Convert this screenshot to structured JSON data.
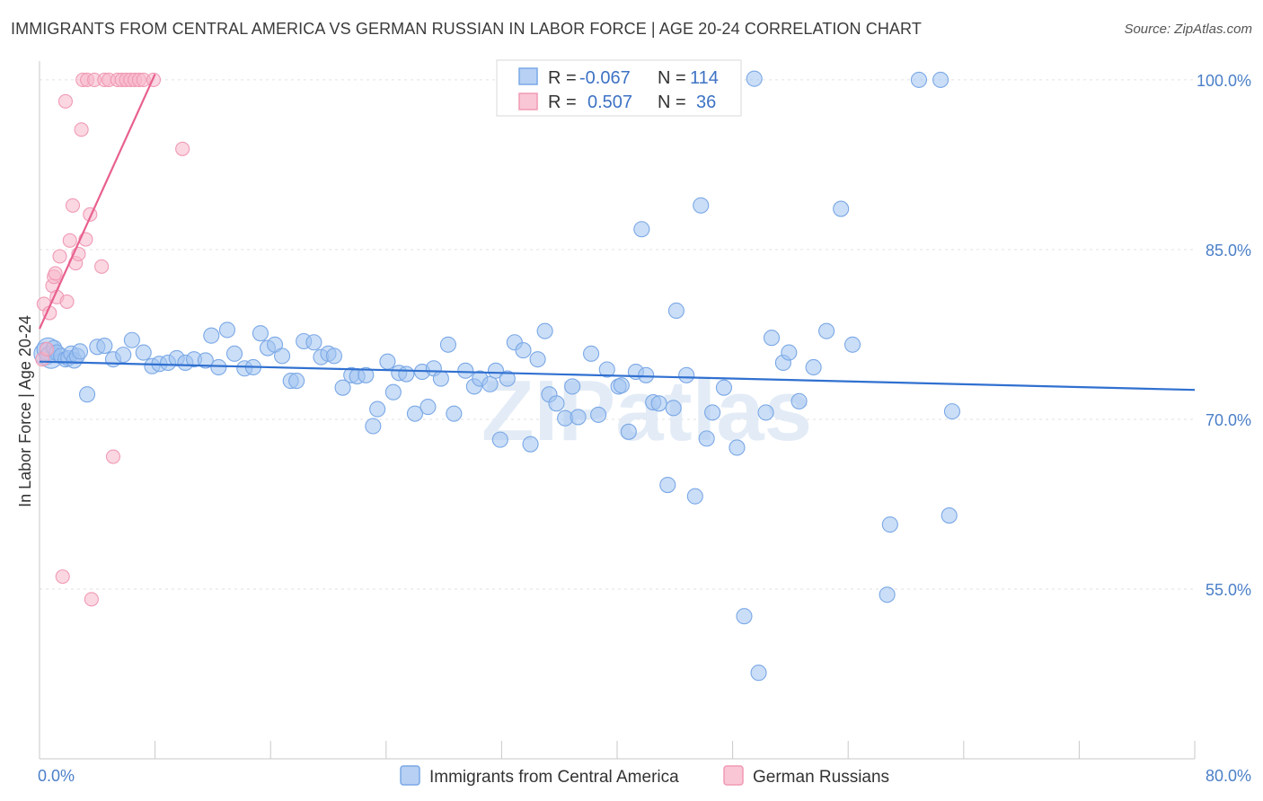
{
  "header": {
    "title": "IMMIGRANTS FROM CENTRAL AMERICA VS GERMAN RUSSIAN IN LABOR FORCE | AGE 20-24 CORRELATION CHART",
    "source": "Source: ZipAtlas.com"
  },
  "colors": {
    "blue": "#7aa8e6",
    "pink": "#f09ab4",
    "blue_line": "#3070d0",
    "pink_line": "#e8608e"
  },
  "chart_data": {
    "type": "scatter",
    "ylabel": "In Labor Force | Age 20-24",
    "xlim": [
      0,
      80
    ],
    "ylim": [
      40,
      101.5
    ],
    "x_tick_labels": [
      "0.0%",
      "80.0%"
    ],
    "y_ticks": [
      {
        "value": 100,
        "label": "100.0%"
      },
      {
        "value": 85,
        "label": "85.0%"
      },
      {
        "value": 70,
        "label": "70.0%"
      },
      {
        "value": 55,
        "label": "55.0%"
      }
    ],
    "grid": true,
    "stats_legend": [
      {
        "r_label": "R =",
        "r_value": "-0.067",
        "n_label": "N =",
        "n_value": "114"
      },
      {
        "r_label": "R =",
        "r_value": "0.507",
        "n_label": "N =",
        "n_value": "36"
      }
    ],
    "watermark": "ZIPatlas",
    "series": [
      {
        "name": "Immigrants from Central America",
        "color": "#7aa8e6",
        "trend": [
          [
            0,
            75.1
          ],
          [
            80,
            72.6
          ]
        ],
        "points": [
          [
            0.4,
            75.8
          ],
          [
            0.6,
            76.2
          ],
          [
            0.8,
            75.5
          ],
          [
            1.0,
            76.3
          ],
          [
            1.2,
            75.9
          ],
          [
            1.5,
            75.6
          ],
          [
            1.8,
            75.3
          ],
          [
            2.0,
            75.4
          ],
          [
            2.2,
            75.8
          ],
          [
            2.4,
            75.2
          ],
          [
            2.6,
            75.6
          ],
          [
            2.8,
            76.0
          ],
          [
            3.3,
            72.2
          ],
          [
            4.0,
            76.4
          ],
          [
            4.5,
            76.5
          ],
          [
            5.1,
            75.3
          ],
          [
            5.8,
            75.7
          ],
          [
            6.4,
            77.0
          ],
          [
            7.2,
            75.9
          ],
          [
            7.8,
            74.7
          ],
          [
            8.3,
            74.9
          ],
          [
            8.9,
            75.0
          ],
          [
            9.5,
            75.4
          ],
          [
            10.1,
            75.0
          ],
          [
            10.7,
            75.3
          ],
          [
            11.5,
            75.2
          ],
          [
            11.9,
            77.4
          ],
          [
            12.4,
            74.6
          ],
          [
            13.0,
            77.9
          ],
          [
            13.5,
            75.8
          ],
          [
            14.2,
            74.5
          ],
          [
            14.8,
            74.6
          ],
          [
            15.3,
            77.6
          ],
          [
            15.8,
            76.3
          ],
          [
            16.3,
            76.6
          ],
          [
            16.8,
            75.6
          ],
          [
            17.4,
            73.4
          ],
          [
            17.8,
            73.4
          ],
          [
            18.3,
            76.9
          ],
          [
            19.0,
            76.8
          ],
          [
            19.5,
            75.5
          ],
          [
            20.0,
            75.8
          ],
          [
            20.4,
            75.6
          ],
          [
            21.0,
            72.8
          ],
          [
            21.6,
            73.9
          ],
          [
            22.0,
            73.8
          ],
          [
            22.6,
            73.9
          ],
          [
            23.1,
            69.4
          ],
          [
            23.4,
            70.9
          ],
          [
            24.1,
            75.1
          ],
          [
            24.5,
            72.4
          ],
          [
            24.9,
            74.1
          ],
          [
            25.4,
            74.0
          ],
          [
            26.0,
            70.5
          ],
          [
            26.5,
            74.2
          ],
          [
            26.9,
            71.1
          ],
          [
            27.3,
            74.5
          ],
          [
            27.8,
            73.6
          ],
          [
            28.3,
            76.6
          ],
          [
            28.7,
            70.5
          ],
          [
            29.5,
            74.3
          ],
          [
            30.1,
            72.9
          ],
          [
            30.5,
            73.6
          ],
          [
            31.2,
            73.1
          ],
          [
            31.6,
            74.3
          ],
          [
            31.9,
            68.2
          ],
          [
            32.4,
            73.6
          ],
          [
            32.9,
            76.8
          ],
          [
            33.5,
            76.1
          ],
          [
            34.0,
            67.8
          ],
          [
            34.5,
            75.3
          ],
          [
            35.0,
            77.8
          ],
          [
            35.3,
            72.2
          ],
          [
            35.8,
            71.4
          ],
          [
            36.4,
            70.1
          ],
          [
            36.9,
            72.9
          ],
          [
            37.3,
            70.2
          ],
          [
            38.2,
            75.8
          ],
          [
            38.7,
            70.4
          ],
          [
            39.3,
            74.4
          ],
          [
            40.1,
            72.9
          ],
          [
            40.3,
            73.0
          ],
          [
            40.8,
            68.9
          ],
          [
            41.3,
            74.2
          ],
          [
            42.0,
            73.9
          ],
          [
            41.7,
            86.8
          ],
          [
            42.5,
            71.5
          ],
          [
            42.9,
            71.4
          ],
          [
            43.5,
            64.2
          ],
          [
            43.9,
            71.0
          ],
          [
            44.1,
            79.6
          ],
          [
            44.8,
            73.9
          ],
          [
            45.4,
            63.2
          ],
          [
            45.8,
            88.9
          ],
          [
            46.2,
            68.3
          ],
          [
            46.6,
            70.6
          ],
          [
            47.4,
            72.8
          ],
          [
            48.3,
            67.5
          ],
          [
            48.8,
            52.6
          ],
          [
            49.5,
            100.1
          ],
          [
            49.8,
            47.6
          ],
          [
            50.3,
            70.6
          ],
          [
            50.7,
            77.2
          ],
          [
            51.5,
            75.0
          ],
          [
            51.9,
            75.9
          ],
          [
            52.6,
            71.6
          ],
          [
            53.6,
            74.6
          ],
          [
            54.5,
            77.8
          ],
          [
            55.5,
            88.6
          ],
          [
            56.3,
            76.6
          ],
          [
            58.7,
            54.5
          ],
          [
            58.9,
            60.7
          ],
          [
            60.9,
            100.0
          ],
          [
            62.4,
            100.0
          ],
          [
            63.0,
            61.5
          ],
          [
            63.2,
            70.7
          ]
        ]
      },
      {
        "name": "German Russians",
        "color": "#f09ab4",
        "trend": [
          [
            0,
            78.0
          ],
          [
            8,
            100.5
          ]
        ],
        "points": [
          [
            0.2,
            75.3
          ],
          [
            0.3,
            80.2
          ],
          [
            0.5,
            76.2
          ],
          [
            0.7,
            79.4
          ],
          [
            0.9,
            81.8
          ],
          [
            1.0,
            82.6
          ],
          [
            1.1,
            82.9
          ],
          [
            1.2,
            80.8
          ],
          [
            1.4,
            84.4
          ],
          [
            1.6,
            56.1
          ],
          [
            1.8,
            98.1
          ],
          [
            1.9,
            80.4
          ],
          [
            2.1,
            85.8
          ],
          [
            2.3,
            88.9
          ],
          [
            2.5,
            83.8
          ],
          [
            2.7,
            84.6
          ],
          [
            2.9,
            95.6
          ],
          [
            3.0,
            100.0
          ],
          [
            3.2,
            85.9
          ],
          [
            3.3,
            100.0
          ],
          [
            3.5,
            88.1
          ],
          [
            3.6,
            54.1
          ],
          [
            3.8,
            100.0
          ],
          [
            4.3,
            83.5
          ],
          [
            4.5,
            100.0
          ],
          [
            4.8,
            100.0
          ],
          [
            5.1,
            66.7
          ],
          [
            5.4,
            100.0
          ],
          [
            5.7,
            100.0
          ],
          [
            6.0,
            100.0
          ],
          [
            6.3,
            100.0
          ],
          [
            6.6,
            100.0
          ],
          [
            6.9,
            100.0
          ],
          [
            7.2,
            100.0
          ],
          [
            7.9,
            100.0
          ],
          [
            9.9,
            93.9
          ]
        ]
      }
    ],
    "bottom_legend": [
      {
        "name": "Immigrants from Central America",
        "color": "#7aa8e6"
      },
      {
        "name": "German Russians",
        "color": "#f09ab4"
      }
    ]
  }
}
